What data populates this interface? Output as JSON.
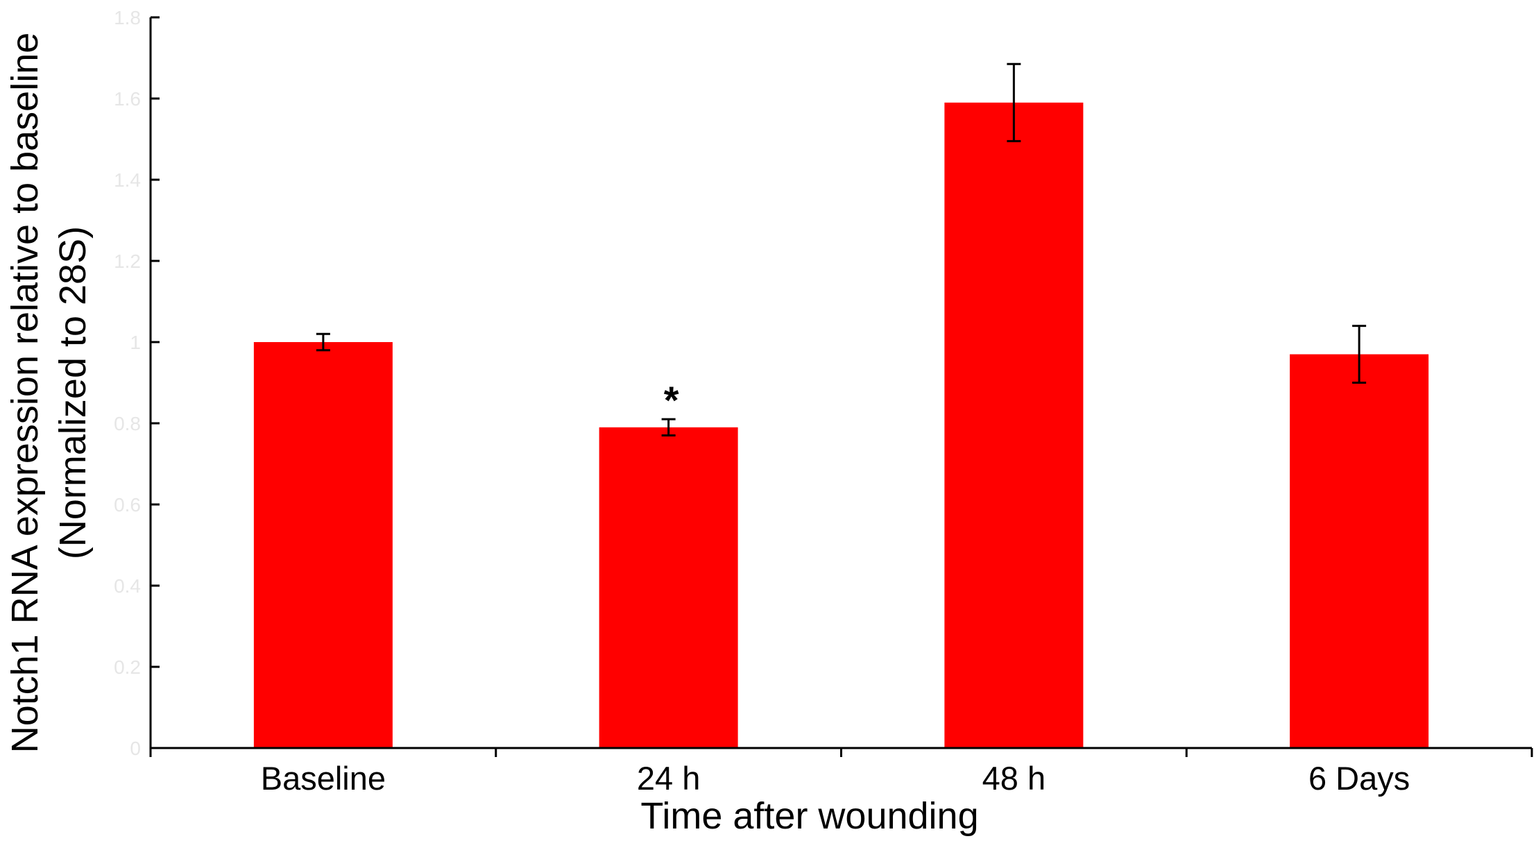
{
  "chart_data": {
    "type": "bar",
    "title": "",
    "xlabel": "Time after wounding",
    "ylabel_line1": "Notch1 RNA expression relative to baseline",
    "ylabel_line2": "(Normalized to 28S)",
    "categories": [
      "Baseline",
      "24 h",
      "48 h",
      "6 Days"
    ],
    "series": [
      {
        "values": [
          1.0,
          0.79,
          1.59,
          0.97
        ],
        "errors": [
          0.02,
          0.02,
          0.095,
          0.07
        ],
        "color": "#ff0000"
      }
    ],
    "yticks": [
      "0",
      "0.2",
      "0.4",
      "0.6",
      "0.8",
      "1",
      "1.2",
      "1.4",
      "1.6",
      "1.8"
    ],
    "ylim": [
      0,
      1.8
    ],
    "annotations": [
      {
        "category": "24 h",
        "text": "*"
      }
    ],
    "grid": false,
    "legend": "none",
    "tick_label_color": "#e6e6e6",
    "error_bar_color": "#000000"
  }
}
